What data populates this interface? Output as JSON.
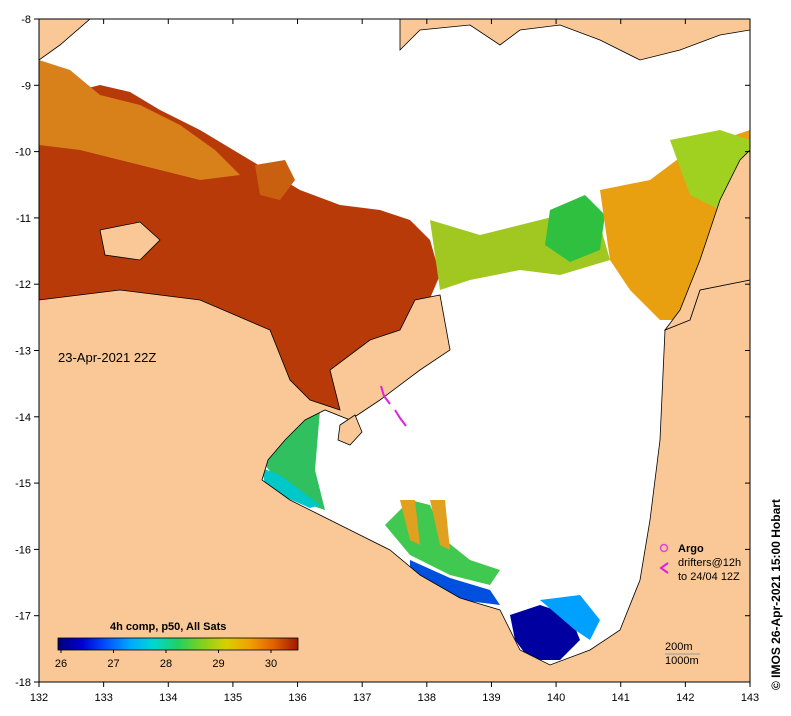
{
  "map": {
    "title_timestamp": "23-Apr-2021 22Z",
    "credit": "© IMOS 26-Apr-2021 15:00 Hobart",
    "x_ticks": [
      "132",
      "133",
      "134",
      "135",
      "136",
      "137",
      "138",
      "139",
      "140",
      "141",
      "142",
      "143"
    ],
    "y_ticks": [
      "-8",
      "-9",
      "-10",
      "-11",
      "-12",
      "-13",
      "-14",
      "-15",
      "-16",
      "-17",
      "-18"
    ],
    "legend": {
      "argo_label": "Argo",
      "drifters_line1": "drifters@12h",
      "drifters_line2": "to 24/04 12Z",
      "argo_color": "#e040e0",
      "drifter_color": "#e020e0"
    },
    "depth_contours": {
      "line1": "200m",
      "line2": "1000m"
    },
    "colorbar": {
      "title": "4h comp, p50, All Sats",
      "tick_labels": [
        "26",
        "27",
        "28",
        "29",
        "30"
      ],
      "colors": [
        "#00007a",
        "#0000d0",
        "#0050ff",
        "#00a8ff",
        "#00d8d0",
        "#20d060",
        "#80d020",
        "#d8d000",
        "#f0a000",
        "#e06000",
        "#c03000",
        "#a01800"
      ]
    },
    "colors": {
      "land": "#f9c896",
      "cloud": "#ffffff",
      "frame": "#000000"
    }
  }
}
